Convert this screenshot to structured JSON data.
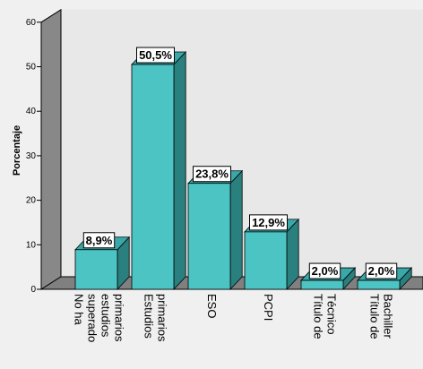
{
  "chart_data": {
    "type": "bar",
    "ylabel": "Porcentaje",
    "ylim": [
      0,
      60
    ],
    "yticks": [
      0,
      10,
      20,
      30,
      40,
      50,
      60
    ],
    "grid": false,
    "categories": [
      [
        "No ha",
        "superado",
        "estudios",
        "primarios"
      ],
      [
        "Estudios",
        "primarios"
      ],
      [
        "ESO"
      ],
      [
        "PCPI"
      ],
      [
        "Título de",
        "Técnico"
      ],
      [
        "Título de",
        "Bachiller"
      ]
    ],
    "values": [
      8.9,
      50.5,
      23.8,
      12.9,
      2.0,
      2.0
    ],
    "data_labels": [
      "8,9%",
      "50,5%",
      "23,8%",
      "12,9%",
      "2,0%",
      "2,0%"
    ],
    "colors": {
      "bar_front": "#4dc4c4",
      "bar_side": "#2a7f7f",
      "bar_top": "#3aa8a8",
      "back_wall": "#e8e8e8",
      "left_wall": "#888888",
      "floor": "#808080",
      "background": "#f0f0f0"
    }
  }
}
